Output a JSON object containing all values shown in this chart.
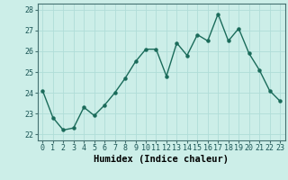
{
  "x": [
    0,
    1,
    2,
    3,
    4,
    5,
    6,
    7,
    8,
    9,
    10,
    11,
    12,
    13,
    14,
    15,
    16,
    17,
    18,
    19,
    20,
    21,
    22,
    23
  ],
  "y": [
    24.1,
    22.8,
    22.2,
    22.3,
    23.3,
    22.9,
    23.4,
    24.0,
    24.7,
    25.5,
    26.1,
    26.1,
    24.8,
    26.4,
    25.8,
    26.8,
    26.5,
    27.8,
    26.5,
    27.1,
    25.9,
    25.1,
    24.1,
    23.6
  ],
  "line_color": "#1a6b5a",
  "marker": "o",
  "marker_size": 2.2,
  "line_width": 1.0,
  "bg_color": "#cceee8",
  "grid_color": "#b0ddd8",
  "xlabel": "Humidex (Indice chaleur)",
  "ylabel": "",
  "ylim": [
    21.7,
    28.3
  ],
  "xlim": [
    -0.5,
    23.5
  ],
  "yticks": [
    22,
    23,
    24,
    25,
    26,
    27,
    28
  ],
  "xticks": [
    0,
    1,
    2,
    3,
    4,
    5,
    6,
    7,
    8,
    9,
    10,
    11,
    12,
    13,
    14,
    15,
    16,
    17,
    18,
    19,
    20,
    21,
    22,
    23
  ],
  "tick_fontsize": 6,
  "xlabel_fontsize": 7.5
}
